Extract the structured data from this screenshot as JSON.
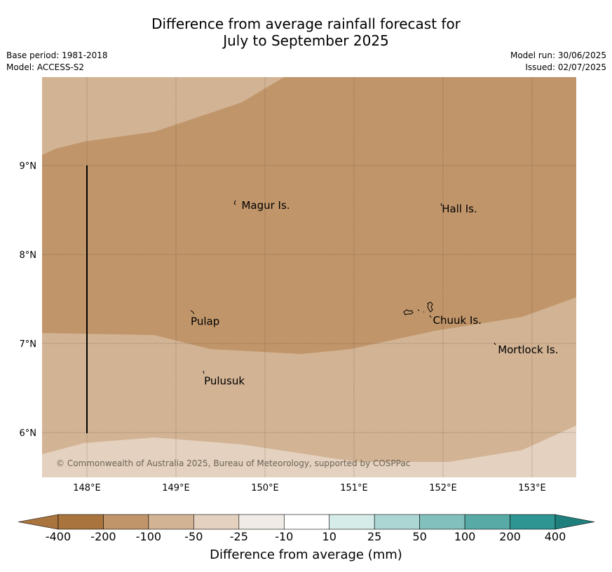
{
  "title": {
    "line1": "Difference from average rainfall forecast for",
    "line2": "July to September 2025"
  },
  "meta": {
    "base_period": "Base period: 1981-2018",
    "model": "Model: ACCESS-S2",
    "model_run": "Model run: 30/06/2025",
    "issued": "Issued: 02/07/2025"
  },
  "map": {
    "lon_ticks": [
      "148°E",
      "149°E",
      "150°E",
      "151°E",
      "152°E",
      "153°E"
    ],
    "lat_ticks": [
      "9°N",
      "8°N",
      "7°N",
      "6°N"
    ],
    "places": [
      {
        "name": "Magur Is.",
        "lon": 149.72,
        "lat": 8.55
      },
      {
        "name": "Hall Is.",
        "lon": 151.97,
        "lat": 8.51
      },
      {
        "name": "Pulap",
        "lon": 149.15,
        "lat": 7.25
      },
      {
        "name": "Chuuk Is.",
        "lon": 151.87,
        "lat": 7.26
      },
      {
        "name": "Mortlock Is.",
        "lon": 152.6,
        "lat": 6.93
      },
      {
        "name": "Pulusuk",
        "lon": 149.3,
        "lat": 6.58
      }
    ],
    "copyright": "© Commonwealth of Australia 2025, Bureau of Meteorology, supported by COSPPac",
    "colors": {
      "c_-200_-100": "#c0956a",
      "c_-100_-50": "#d2b394",
      "c_-50_-25": "#e4d1bf",
      "land": "#000000"
    }
  },
  "legend": {
    "ticks": [
      "-400",
      "-200",
      "-100",
      "-50",
      "-25",
      "-10",
      "10",
      "25",
      "50",
      "100",
      "200",
      "400"
    ],
    "colors": [
      "#a9743e",
      "#c0956a",
      "#d2b394",
      "#e4d1bf",
      "#f0ebe6",
      "#ffffff",
      "#d6ece9",
      "#acd6d3",
      "#82c0bd",
      "#58aaa7",
      "#2e9592"
    ],
    "under_color": "#a9743e",
    "over_color": "#1f7f7c",
    "label": "Difference from average (mm)"
  }
}
